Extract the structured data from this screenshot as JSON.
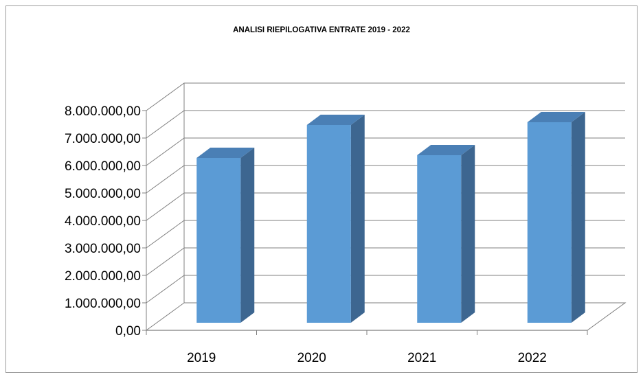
{
  "chart_data": {
    "type": "bar",
    "title": "ANALISI RIEPILOGATIVA ENTRATE 2019 - 2022",
    "categories": [
      "2019",
      "2020",
      "2021",
      "2022"
    ],
    "values": [
      6000000,
      7200000,
      6100000,
      7300000
    ],
    "ylim": [
      0,
      8000000
    ],
    "y_ticks": [
      "0,00",
      "1.000.000,00",
      "2.000.000,00",
      "3.000.000,00",
      "4.000.000,00",
      "5.000.000,00",
      "6.000.000,00",
      "7.000.000,00",
      "8.000.000,00"
    ],
    "grid": true,
    "legend": "none",
    "style": "3d-column",
    "colors": {
      "front": "#5b9bd5",
      "side": "#3d6690",
      "top": "#4a7fb5",
      "grid": "#7f7f7f"
    }
  }
}
